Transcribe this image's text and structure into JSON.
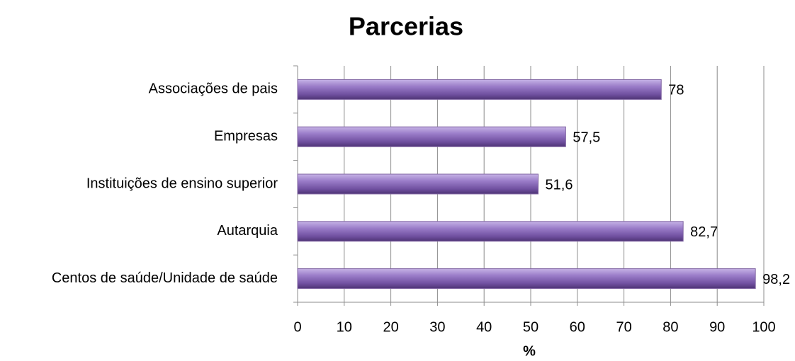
{
  "chart_data": {
    "type": "bar",
    "orientation": "horizontal",
    "title": "Parcerias",
    "x_label": "%",
    "categories": [
      "Associações de pais",
      "Empresas",
      "Instituições de ensino superior",
      "Autarquia",
      "Centos de saúde/Unidade de saúde"
    ],
    "values": [
      78,
      57.5,
      51.6,
      82.7,
      98.2
    ],
    "value_labels": [
      "78",
      "57,5",
      "51,6",
      "82,7",
      "98,2"
    ],
    "color": "#8064a2",
    "xlim": [
      0,
      100
    ],
    "xticks": [
      0,
      10,
      20,
      30,
      40,
      50,
      60,
      70,
      80,
      90,
      100
    ],
    "grid": true
  }
}
